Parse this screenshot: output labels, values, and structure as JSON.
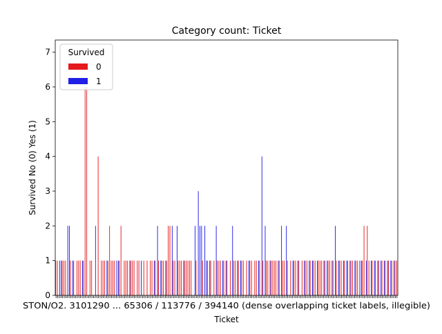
{
  "chart_data": {
    "type": "bar",
    "title": "Category count: Ticket",
    "xlabel": "Ticket",
    "ylabel": "Survived No (0) Yes (1)",
    "ylim": [
      0,
      7.35
    ],
    "yticks": [
      0,
      1,
      2,
      3,
      4,
      5,
      6,
      7
    ],
    "grid": false,
    "legend": {
      "title": "Survived",
      "placement": "top-left"
    },
    "x_tick_label_overlap_text": "STON/O2. 3101290 ... 65306 / 113776 / 394140 (dense overlapping ticket labels, illegible)",
    "series": [
      {
        "name": "0",
        "color": "#e41a1c"
      },
      {
        "name": "1",
        "color": "#1f1fe6"
      }
    ],
    "counts": [
      [
        1,
        0
      ],
      [
        1,
        0
      ],
      [
        0,
        1
      ],
      [
        0,
        1
      ],
      [
        1,
        0
      ],
      [
        1,
        0
      ],
      [
        1,
        0
      ],
      [
        0,
        2
      ],
      [
        0,
        2
      ],
      [
        1,
        0
      ],
      [
        0,
        1
      ],
      [
        1,
        0
      ],
      [
        0,
        0
      ],
      [
        1,
        0
      ],
      [
        1,
        0
      ],
      [
        1,
        0
      ],
      [
        0,
        1
      ],
      [
        1,
        0
      ],
      [
        6,
        0
      ],
      [
        6,
        0
      ],
      [
        0,
        0
      ],
      [
        1,
        0
      ],
      [
        1,
        0
      ],
      [
        0,
        0
      ],
      [
        0,
        2
      ],
      [
        0,
        0
      ],
      [
        4,
        0
      ],
      [
        0,
        0
      ],
      [
        1,
        0
      ],
      [
        1,
        0
      ],
      [
        1,
        0
      ],
      [
        0,
        1
      ],
      [
        1,
        0
      ],
      [
        2,
        0
      ],
      [
        1,
        0
      ],
      [
        1,
        0
      ],
      [
        1,
        0
      ],
      [
        0,
        1
      ],
      [
        0,
        1
      ],
      [
        1,
        0
      ],
      [
        2,
        0
      ],
      [
        0,
        0
      ],
      [
        1,
        0
      ],
      [
        1,
        0
      ],
      [
        1,
        0
      ],
      [
        0,
        1
      ],
      [
        1,
        0
      ],
      [
        1,
        0
      ],
      [
        1,
        0
      ],
      [
        0,
        0
      ],
      [
        1,
        0
      ],
      [
        1,
        0
      ],
      [
        0,
        1
      ],
      [
        0,
        0
      ],
      [
        1,
        0
      ],
      [
        0,
        0
      ],
      [
        1,
        0
      ],
      [
        0,
        0
      ],
      [
        1,
        0
      ],
      [
        1,
        0
      ],
      [
        0,
        1
      ],
      [
        1,
        0
      ],
      [
        0,
        2
      ],
      [
        1,
        0
      ],
      [
        0,
        1
      ],
      [
        1,
        0
      ],
      [
        1,
        0
      ],
      [
        0,
        1
      ],
      [
        1,
        0
      ],
      [
        2,
        0
      ],
      [
        2,
        0
      ],
      [
        0,
        2
      ],
      [
        1,
        0
      ],
      [
        1,
        0
      ],
      [
        0,
        2
      ],
      [
        1,
        0
      ],
      [
        1,
        0
      ],
      [
        1,
        0
      ],
      [
        0,
        1
      ],
      [
        1,
        0
      ],
      [
        1,
        0
      ],
      [
        1,
        0
      ],
      [
        1,
        0
      ],
      [
        1,
        0
      ],
      [
        0,
        0
      ],
      [
        0,
        2
      ],
      [
        1,
        0
      ],
      [
        0,
        3
      ],
      [
        0,
        2
      ],
      [
        0,
        2
      ],
      [
        1,
        0
      ],
      [
        0,
        2
      ],
      [
        0,
        1
      ],
      [
        1,
        0
      ],
      [
        0,
        1
      ],
      [
        1,
        0
      ],
      [
        0,
        0
      ],
      [
        1,
        0
      ],
      [
        0,
        2
      ],
      [
        1,
        0
      ],
      [
        1,
        0
      ],
      [
        1,
        0
      ],
      [
        0,
        1
      ],
      [
        1,
        0
      ],
      [
        0,
        1
      ],
      [
        1,
        0
      ],
      [
        0,
        0
      ],
      [
        1,
        0
      ],
      [
        0,
        2
      ],
      [
        1,
        0
      ],
      [
        1,
        0
      ],
      [
        0,
        1
      ],
      [
        1,
        0
      ],
      [
        0,
        1
      ],
      [
        1,
        0
      ],
      [
        1,
        0
      ],
      [
        0,
        0
      ],
      [
        1,
        0
      ],
      [
        0,
        1
      ],
      [
        1,
        0
      ],
      [
        1,
        0
      ],
      [
        0,
        0
      ],
      [
        1,
        0
      ],
      [
        1,
        0
      ],
      [
        0,
        1
      ],
      [
        1,
        0
      ],
      [
        0,
        4
      ],
      [
        1,
        0
      ],
      [
        0,
        2
      ],
      [
        1,
        0
      ],
      [
        1,
        0
      ],
      [
        0,
        1
      ],
      [
        1,
        0
      ],
      [
        1,
        0
      ],
      [
        1,
        0
      ],
      [
        1,
        0
      ],
      [
        0,
        1
      ],
      [
        1,
        0
      ],
      [
        0,
        2
      ],
      [
        1,
        0
      ],
      [
        1,
        0
      ],
      [
        0,
        2
      ],
      [
        1,
        0
      ],
      [
        0,
        0
      ],
      [
        1,
        0
      ],
      [
        0,
        1
      ],
      [
        1,
        0
      ],
      [
        1,
        0
      ],
      [
        0,
        1
      ],
      [
        1,
        0
      ],
      [
        0,
        0
      ],
      [
        1,
        0
      ],
      [
        0,
        1
      ],
      [
        1,
        0
      ],
      [
        1,
        0
      ],
      [
        0,
        1
      ],
      [
        1,
        0
      ],
      [
        0,
        1
      ],
      [
        1,
        0
      ],
      [
        1,
        0
      ],
      [
        0,
        1
      ],
      [
        1,
        0
      ],
      [
        1,
        0
      ],
      [
        1,
        0
      ],
      [
        0,
        1
      ],
      [
        1,
        0
      ],
      [
        0,
        1
      ],
      [
        1,
        0
      ],
      [
        1,
        0
      ],
      [
        0,
        1
      ],
      [
        1,
        0
      ],
      [
        0,
        2
      ],
      [
        1,
        0
      ],
      [
        0,
        1
      ],
      [
        1,
        0
      ],
      [
        1,
        0
      ],
      [
        0,
        1
      ],
      [
        1,
        0
      ],
      [
        0,
        1
      ],
      [
        1,
        0
      ],
      [
        0,
        1
      ],
      [
        1,
        0
      ],
      [
        1,
        0
      ],
      [
        0,
        1
      ],
      [
        1,
        0
      ],
      [
        1,
        0
      ],
      [
        0,
        1
      ],
      [
        0,
        1
      ],
      [
        1,
        0
      ],
      [
        2,
        0
      ],
      [
        0,
        1
      ],
      [
        2,
        0
      ],
      [
        1,
        0
      ],
      [
        0,
        1
      ],
      [
        1,
        0
      ],
      [
        0,
        1
      ],
      [
        1,
        0
      ],
      [
        0,
        1
      ],
      [
        1,
        0
      ],
      [
        0,
        1
      ],
      [
        1,
        0
      ],
      [
        0,
        1
      ],
      [
        1,
        0
      ],
      [
        0,
        1
      ],
      [
        1,
        0
      ],
      [
        0,
        1
      ],
      [
        1,
        0
      ],
      [
        0,
        1
      ],
      [
        1,
        0
      ],
      [
        1,
        0
      ]
    ]
  }
}
